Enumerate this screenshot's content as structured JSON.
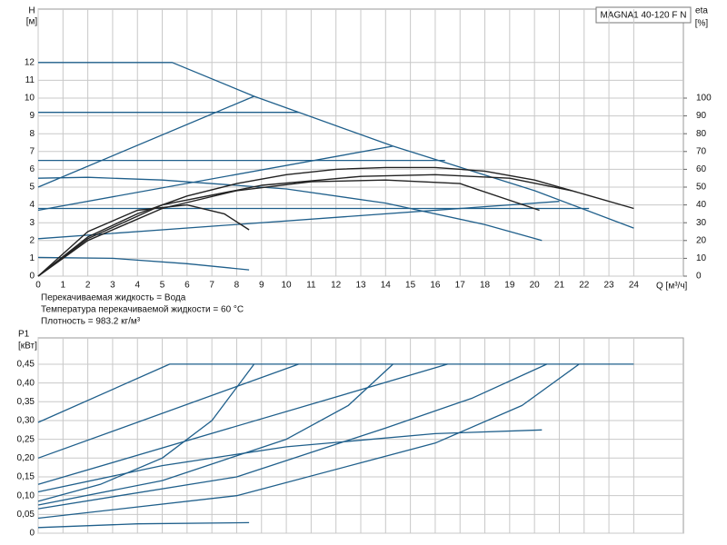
{
  "chart_data": [
    {
      "type": "line",
      "title": "MAGNA1 40-120 F N",
      "ylabel": [
        "H",
        "[м]"
      ],
      "y2label": [
        "eta",
        "[%]"
      ],
      "xlabel": "Q [м³/ч]",
      "notes": [
        "Перекачиваемая жидкость = Вода",
        "Температура перекачиваемой жидкости = 60 °C",
        "Плотность = 983.2 кг/м³"
      ],
      "xlim": [
        0,
        26
      ],
      "xticks": [
        0,
        1,
        2,
        3,
        4,
        5,
        6,
        7,
        8,
        9,
        10,
        11,
        12,
        13,
        14,
        15,
        16,
        17,
        18,
        19,
        20,
        21,
        22,
        23,
        24
      ],
      "ylim": [
        0,
        15
      ],
      "yticks": [
        0,
        1,
        2,
        3,
        4,
        5,
        6,
        7,
        8,
        9,
        10,
        11,
        12
      ],
      "y2lim": [
        0,
        150
      ],
      "y2ticks": [
        0,
        10,
        20,
        30,
        40,
        50,
        60,
        70,
        80,
        90,
        100
      ],
      "grid": true,
      "xtick_labels": true,
      "series": [
        {
          "color": "#1f5f8b",
          "x": [
            0,
            5.4,
            8.7,
            14.3,
            20,
            24
          ],
          "values": [
            12,
            12,
            10.1,
            7.3,
            4.8,
            2.7
          ]
        },
        {
          "color": "#1f5f8b",
          "x": [
            0,
            10.5
          ],
          "values": [
            9.2,
            9.2
          ]
        },
        {
          "color": "#1f5f8b",
          "x": [
            0,
            16.4
          ],
          "values": [
            6.5,
            6.5
          ]
        },
        {
          "color": "#1f5f8b",
          "x": [
            0,
            22.2
          ],
          "values": [
            3.8,
            3.8
          ]
        },
        {
          "color": "#1f5f8b",
          "x": [
            0,
            8.7
          ],
          "values": [
            5,
            10.1
          ]
        },
        {
          "color": "#1f5f8b",
          "x": [
            0,
            14.3
          ],
          "values": [
            3.7,
            7.3
          ]
        },
        {
          "color": "#1f5f8b",
          "x": [
            0,
            21
          ],
          "values": [
            2.1,
            4.2
          ]
        },
        {
          "color": "#1f5f8b",
          "x": [
            0,
            2,
            5,
            10,
            14,
            18,
            20.3
          ],
          "values": [
            5.5,
            5.55,
            5.4,
            4.9,
            4.1,
            2.9,
            2.0
          ]
        },
        {
          "color": "#1f5f8b",
          "x": [
            0,
            3,
            6,
            8.5
          ],
          "values": [
            1.05,
            1.0,
            0.7,
            0.35
          ]
        },
        {
          "color": "#222222",
          "axis": "y2",
          "x": [
            0,
            2,
            4,
            6,
            8,
            10,
            12,
            14,
            16,
            18,
            20,
            22,
            24
          ],
          "values": [
            0,
            22,
            35,
            45,
            52,
            57,
            60,
            61,
            61,
            59,
            54,
            46,
            38
          ]
        },
        {
          "color": "#222222",
          "axis": "y2",
          "x": [
            0,
            2,
            5,
            8,
            11,
            14,
            17,
            20.2
          ],
          "values": [
            0,
            20,
            38,
            48,
            53,
            54,
            52,
            37
          ]
        },
        {
          "color": "#222222",
          "axis": "y2",
          "x": [
            0,
            2,
            4,
            6,
            7.5,
            8.5
          ],
          "values": [
            0,
            25,
            37,
            40,
            35,
            26
          ]
        },
        {
          "color": "#222222",
          "axis": "y2",
          "x": [
            0,
            2,
            5,
            9,
            13,
            16,
            19,
            21.5
          ],
          "values": [
            0,
            21,
            40,
            51,
            56,
            57,
            55,
            48
          ]
        }
      ]
    },
    {
      "type": "line",
      "ylabel": [
        "P1",
        "[кВт]"
      ],
      "xlim": [
        0,
        26
      ],
      "xticks": [
        0,
        1,
        2,
        3,
        4,
        5,
        6,
        7,
        8,
        9,
        10,
        11,
        12,
        13,
        14,
        15,
        16,
        17,
        18,
        19,
        20,
        21,
        22,
        23,
        24
      ],
      "xtick_labels": false,
      "ylim": [
        0,
        0.52
      ],
      "yticks": [
        0,
        {
          "value": 0.05,
          "label": "0,05"
        },
        {
          "value": 0.1,
          "label": "0,10"
        },
        {
          "value": 0.15,
          "label": "0,15"
        },
        {
          "value": 0.2,
          "label": "0,20"
        },
        {
          "value": 0.25,
          "label": "0,25"
        },
        {
          "value": 0.3,
          "label": "0,30"
        },
        {
          "value": 0.35,
          "label": "0,35"
        },
        {
          "value": 0.4,
          "label": "0,40"
        },
        {
          "value": 0.45,
          "label": "0,45"
        }
      ],
      "grid": true,
      "series": [
        {
          "color": "#1f5f8b",
          "x": [
            0,
            5.3,
            24
          ],
          "values": [
            0.295,
            0.45,
            0.45
          ]
        },
        {
          "color": "#1f5f8b",
          "x": [
            0,
            10.5
          ],
          "values": [
            0.2,
            0.45
          ]
        },
        {
          "color": "#1f5f8b",
          "x": [
            0,
            16.5
          ],
          "values": [
            0.13,
            0.45
          ]
        },
        {
          "color": "#1f5f8b",
          "x": [
            0,
            2.5,
            5,
            7,
            8.7
          ],
          "values": [
            0.085,
            0.13,
            0.2,
            0.3,
            0.45
          ]
        },
        {
          "color": "#1f5f8b",
          "x": [
            0,
            5,
            10,
            12.5,
            14.3
          ],
          "values": [
            0.075,
            0.14,
            0.25,
            0.34,
            0.45
          ]
        },
        {
          "color": "#1f5f8b",
          "x": [
            0,
            8,
            14,
            17.5,
            20.5
          ],
          "values": [
            0.065,
            0.15,
            0.28,
            0.36,
            0.45
          ]
        },
        {
          "color": "#1f5f8b",
          "x": [
            0,
            8,
            16,
            19.5,
            21.8
          ],
          "values": [
            0.04,
            0.1,
            0.24,
            0.34,
            0.45
          ]
        },
        {
          "color": "#1f5f8b",
          "x": [
            0,
            5,
            10,
            16,
            20.3
          ],
          "values": [
            0.11,
            0.18,
            0.23,
            0.265,
            0.275
          ]
        },
        {
          "color": "#1f5f8b",
          "x": [
            0,
            4,
            8.5
          ],
          "values": [
            0.015,
            0.025,
            0.028
          ]
        }
      ]
    }
  ]
}
